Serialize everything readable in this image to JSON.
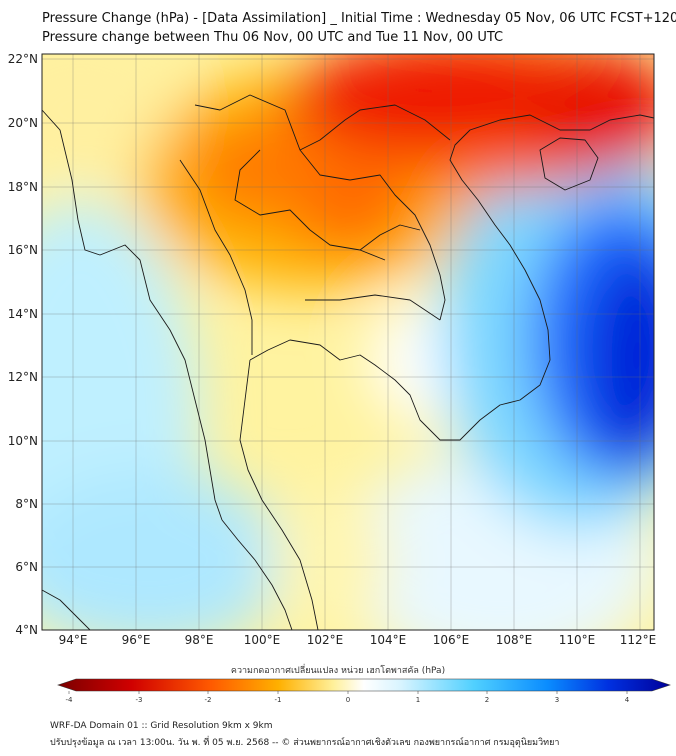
{
  "header": {
    "title": "Pressure Change (hPa) - [Data Assimilation] _ Initial Time : Wednesday 05 Nov, 06 UTC FCST+120",
    "subtitle": "Pressure change between Thu 06 Nov, 00 UTC and Tue 11 Nov, 00 UTC"
  },
  "map": {
    "lon_ticks": [
      "94°E",
      "96°E",
      "98°E",
      "100°E",
      "102°E",
      "104°E",
      "106°E",
      "108°E",
      "110°E",
      "112°E"
    ],
    "lat_ticks": [
      "22°N",
      "20°N",
      "18°N",
      "16°N",
      "14°N",
      "12°N",
      "10°N",
      "8°N",
      "6°N",
      "4°N"
    ],
    "lon_range": [
      93,
      112.5
    ],
    "lat_range": [
      4,
      22.2
    ],
    "features": [
      "pressure-decrease-north-laos-vietnam",
      "pressure-increase-south-china-sea"
    ]
  },
  "colorbar": {
    "label": "ความกดอากาศเปลี่ยนแปลง หน่วย เฮกโตพาสคัล (hPa)",
    "ticks": [
      "-4",
      "-3",
      "-2",
      "-1",
      "0",
      "1",
      "2",
      "3",
      "4"
    ],
    "range": [
      -4.4,
      4.4
    ],
    "colors": [
      "#7a0000",
      "#e00000",
      "#ff6a00",
      "#ffc400",
      "#fff8b0",
      "#ffffff",
      "#c8f0ff",
      "#30c8ff",
      "#0060ff",
      "#00009a"
    ]
  },
  "footer": {
    "line1": "WRF-DA Domain 01 :: Grid Resolution 9km x 9km",
    "line2": "ปรับปรุงข้อมูล ณ เวลา 13:00น. วัน พ. ที่ 05 พ.ย. 2568 -- © ส่วนพยากรณ์อากาศเชิงตัวเลข กองพยากรณ์อากาศ กรมอุตุนิยมวิทยา"
  }
}
